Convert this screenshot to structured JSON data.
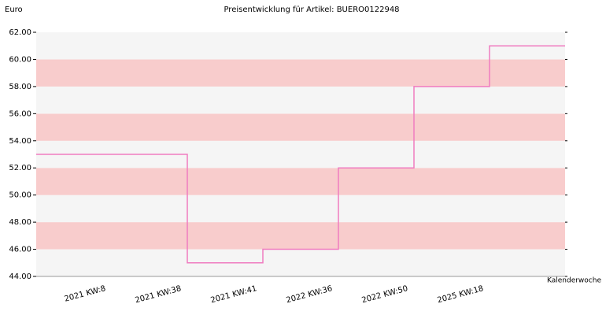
{
  "chart_data": {
    "type": "step",
    "title": "Preisentwicklung für Artikel: BUERO0122948",
    "y_label": "Euro",
    "x_label": "Kalenderwoche",
    "categories": [
      "2021 KW:8",
      "2021 KW:38",
      "2021 KW:41",
      "2022 KW:36",
      "2022 KW:50",
      "2025 KW:18"
    ],
    "series": [
      {
        "color": "#f07cc0",
        "values": [
          53,
          45,
          46,
          52,
          58,
          61
        ]
      }
    ],
    "ylim": [
      44,
      62
    ],
    "yticks": [
      {
        "value": 44,
        "label": "44.00"
      },
      {
        "value": 46,
        "label": "46.00"
      },
      {
        "value": 48,
        "label": "48.00"
      },
      {
        "value": 50,
        "label": "50.00"
      },
      {
        "value": 52,
        "label": "52.00"
      },
      {
        "value": 54,
        "label": "54.00"
      },
      {
        "value": 56,
        "label": "56.00"
      },
      {
        "value": 58,
        "label": "58.00"
      },
      {
        "value": 60,
        "label": "60.00"
      },
      {
        "value": 62,
        "label": "62.00"
      }
    ],
    "band_colors": [
      "#f5f5f5",
      "#f8cccc"
    ]
  }
}
